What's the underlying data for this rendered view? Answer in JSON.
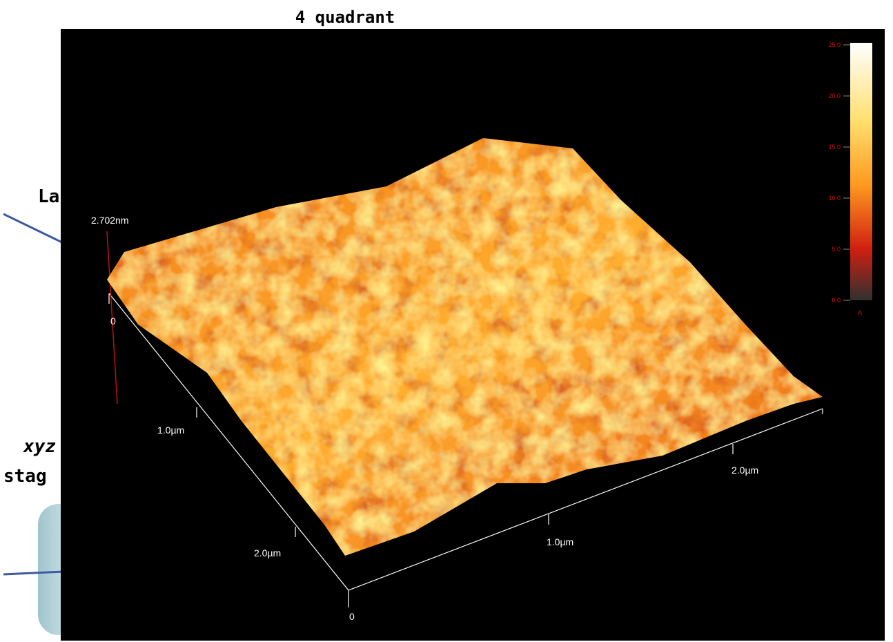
{
  "title": "4 quadrant",
  "side_labels": [
    "La",
    "xyz",
    "stag"
  ],
  "scale_label": "2.702nm",
  "axis_labels": [
    "0",
    "1.0µm",
    "2.0µm",
    "0",
    "1.0µm",
    "2.0µm"
  ],
  "colorbar": {
    "ticks": [
      "25.0",
      "20.0",
      "15.0",
      "10.0",
      "5.0",
      "0.0"
    ],
    "unit": "A"
  }
}
